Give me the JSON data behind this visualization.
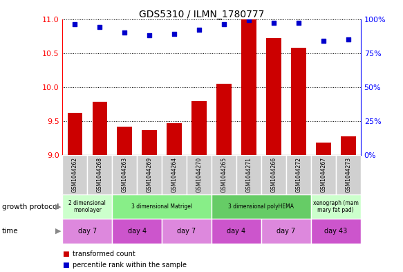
{
  "title": "GDS5310 / ILMN_1780777",
  "samples": [
    "GSM1044262",
    "GSM1044268",
    "GSM1044263",
    "GSM1044269",
    "GSM1044264",
    "GSM1044270",
    "GSM1044265",
    "GSM1044271",
    "GSM1044266",
    "GSM1044272",
    "GSM1044267",
    "GSM1044273"
  ],
  "bar_values": [
    9.62,
    9.78,
    9.42,
    9.37,
    9.47,
    9.79,
    10.05,
    11.0,
    10.72,
    10.58,
    9.18,
    9.28
  ],
  "dot_values": [
    96,
    94,
    90,
    88,
    89,
    92,
    96,
    99,
    97,
    97,
    84,
    85
  ],
  "bar_color": "#cc0000",
  "dot_color": "#0000cc",
  "ylim_left": [
    9.0,
    11.0
  ],
  "ylim_right": [
    0,
    100
  ],
  "yticks_left": [
    9.0,
    9.5,
    10.0,
    10.5,
    11.0
  ],
  "yticks_right": [
    0,
    25,
    50,
    75,
    100
  ],
  "growth_protocol_groups": [
    {
      "label": "2 dimensional\nmonolayer",
      "start": 0,
      "end": 2,
      "color": "#ccffcc"
    },
    {
      "label": "3 dimensional Matrigel",
      "start": 2,
      "end": 6,
      "color": "#88ee88"
    },
    {
      "label": "3 dimensional polyHEMA",
      "start": 6,
      "end": 10,
      "color": "#66cc66"
    },
    {
      "label": "xenograph (mam\nmary fat pad)",
      "start": 10,
      "end": 12,
      "color": "#ccffcc"
    }
  ],
  "time_groups": [
    {
      "label": "day 7",
      "start": 0,
      "end": 2,
      "color": "#dd88dd"
    },
    {
      "label": "day 4",
      "start": 2,
      "end": 4,
      "color": "#cc55cc"
    },
    {
      "label": "day 7",
      "start": 4,
      "end": 6,
      "color": "#dd88dd"
    },
    {
      "label": "day 4",
      "start": 6,
      "end": 8,
      "color": "#cc55cc"
    },
    {
      "label": "day 7",
      "start": 8,
      "end": 10,
      "color": "#dd88dd"
    },
    {
      "label": "day 43",
      "start": 10,
      "end": 12,
      "color": "#cc55cc"
    }
  ],
  "legend_bar_label": "transformed count",
  "legend_dot_label": "percentile rank within the sample",
  "growth_protocol_label": "growth protocol",
  "time_label": "time",
  "label_arrow_color": "#888888"
}
